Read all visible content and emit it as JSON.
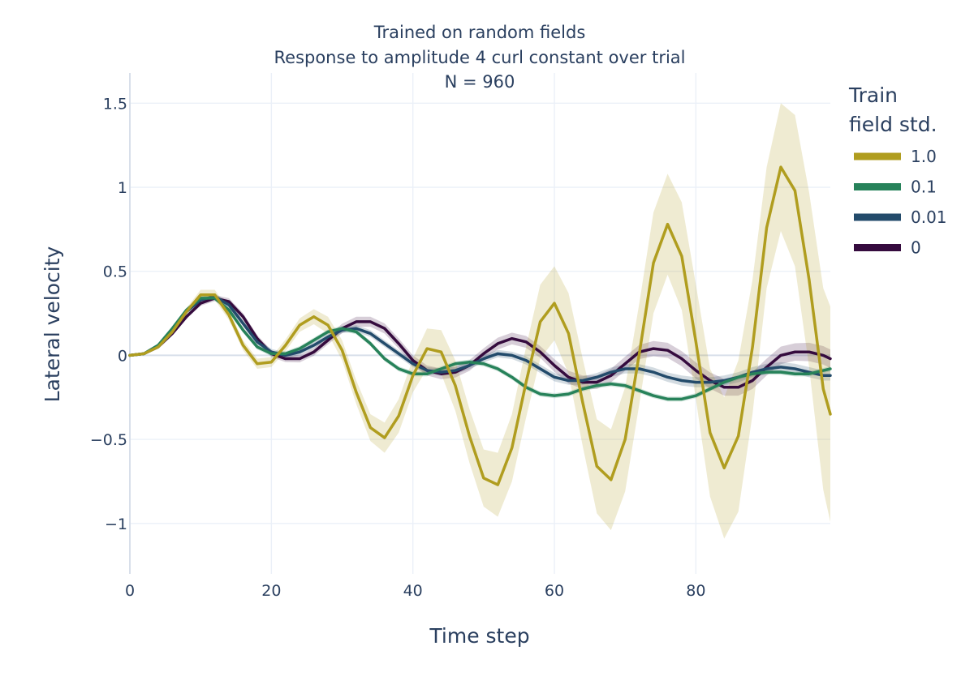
{
  "chart_data": {
    "type": "line",
    "title_lines": [
      "Trained on random fields",
      "Response to amplitude 4 curl constant over trial",
      "N = 960"
    ],
    "xlabel": "Time step",
    "ylabel": "Lateral velocity",
    "xlim": [
      0,
      99
    ],
    "ylim": [
      -1.3,
      1.68
    ],
    "xticks": [
      0,
      20,
      40,
      60,
      80
    ],
    "xtick_labels": [
      "0",
      "20",
      "40",
      "60",
      "80"
    ],
    "yticks": [
      -1,
      -0.5,
      0,
      0.5,
      1,
      1.5
    ],
    "ytick_labels": [
      "−1",
      "−0.5",
      "0",
      "0.5",
      "1",
      "1.5"
    ],
    "grid": true,
    "legend": {
      "title_lines": [
        "Train",
        "field std."
      ],
      "placement": "right"
    },
    "series": [
      {
        "name": "1.0",
        "color": "#b09d1f",
        "band": true,
        "x": [
          0,
          2,
          4,
          6,
          8,
          10,
          12,
          14,
          16,
          18,
          20,
          22,
          24,
          26,
          28,
          30,
          32,
          34,
          36,
          38,
          40,
          42,
          44,
          46,
          48,
          50,
          52,
          54,
          56,
          58,
          60,
          62,
          64,
          66,
          68,
          70,
          72,
          74,
          76,
          78,
          80,
          82,
          84,
          86,
          88,
          90,
          92,
          94,
          96,
          98,
          99
        ],
        "y": [
          0,
          0.01,
          0.05,
          0.14,
          0.26,
          0.36,
          0.36,
          0.24,
          0.06,
          -0.05,
          -0.04,
          0.06,
          0.18,
          0.23,
          0.18,
          0.03,
          -0.22,
          -0.43,
          -0.49,
          -0.36,
          -0.12,
          0.04,
          0.02,
          -0.18,
          -0.48,
          -0.73,
          -0.77,
          -0.55,
          -0.16,
          0.2,
          0.31,
          0.13,
          -0.28,
          -0.66,
          -0.74,
          -0.5,
          0.01,
          0.55,
          0.78,
          0.59,
          0.08,
          -0.46,
          -0.67,
          -0.48,
          0.05,
          0.76,
          1.12,
          0.98,
          0.45,
          -0.2,
          -0.35
        ],
        "band_halfwidth": [
          0,
          0.005,
          0.01,
          0.015,
          0.02,
          0.03,
          0.03,
          0.03,
          0.03,
          0.03,
          0.03,
          0.035,
          0.04,
          0.045,
          0.05,
          0.06,
          0.07,
          0.08,
          0.09,
          0.1,
          0.1,
          0.12,
          0.13,
          0.15,
          0.16,
          0.17,
          0.19,
          0.2,
          0.21,
          0.22,
          0.22,
          0.24,
          0.26,
          0.28,
          0.3,
          0.31,
          0.3,
          0.3,
          0.3,
          0.32,
          0.34,
          0.38,
          0.42,
          0.45,
          0.4,
          0.36,
          0.38,
          0.45,
          0.52,
          0.6,
          0.64
        ]
      },
      {
        "name": "0.1",
        "color": "#27825a",
        "band": true,
        "x": [
          0,
          2,
          4,
          6,
          8,
          10,
          12,
          14,
          16,
          18,
          20,
          22,
          24,
          26,
          28,
          30,
          32,
          34,
          36,
          38,
          40,
          42,
          44,
          46,
          48,
          50,
          52,
          54,
          56,
          58,
          60,
          62,
          64,
          66,
          68,
          70,
          72,
          74,
          76,
          78,
          80,
          82,
          84,
          86,
          88,
          90,
          92,
          94,
          96,
          98,
          99
        ],
        "y": [
          0,
          0.01,
          0.06,
          0.16,
          0.27,
          0.34,
          0.34,
          0.27,
          0.15,
          0.05,
          0.01,
          0.01,
          0.04,
          0.09,
          0.14,
          0.16,
          0.14,
          0.07,
          -0.02,
          -0.08,
          -0.11,
          -0.11,
          -0.08,
          -0.05,
          -0.04,
          -0.05,
          -0.08,
          -0.13,
          -0.19,
          -0.23,
          -0.24,
          -0.23,
          -0.2,
          -0.18,
          -0.17,
          -0.18,
          -0.21,
          -0.24,
          -0.26,
          -0.26,
          -0.24,
          -0.2,
          -0.16,
          -0.13,
          -0.11,
          -0.1,
          -0.1,
          -0.11,
          -0.11,
          -0.09,
          -0.08
        ],
        "band_halfwidth": [
          0,
          0.005,
          0.008,
          0.01,
          0.012,
          0.015,
          0.015,
          0.015,
          0.015,
          0.015,
          0.015,
          0.015,
          0.015,
          0.015,
          0.015,
          0.015,
          0.015,
          0.015,
          0.015,
          0.015,
          0.015,
          0.015,
          0.015,
          0.015,
          0.015,
          0.015,
          0.015,
          0.015,
          0.015,
          0.015,
          0.015,
          0.015,
          0.015,
          0.015,
          0.015,
          0.015,
          0.015,
          0.015,
          0.015,
          0.015,
          0.015,
          0.015,
          0.015,
          0.015,
          0.015,
          0.015,
          0.015,
          0.015,
          0.015,
          0.015,
          0.015
        ]
      },
      {
        "name": "0.01",
        "color": "#234b6b",
        "band": true,
        "x": [
          0,
          2,
          4,
          6,
          8,
          10,
          12,
          14,
          16,
          18,
          20,
          22,
          24,
          26,
          28,
          30,
          32,
          34,
          36,
          38,
          40,
          42,
          44,
          46,
          48,
          50,
          52,
          54,
          56,
          58,
          60,
          62,
          64,
          66,
          68,
          70,
          72,
          74,
          76,
          78,
          80,
          82,
          84,
          86,
          88,
          90,
          92,
          94,
          96,
          98,
          99
        ],
        "y": [
          0,
          0.01,
          0.06,
          0.15,
          0.26,
          0.33,
          0.35,
          0.3,
          0.19,
          0.08,
          0.02,
          0,
          0.02,
          0.06,
          0.11,
          0.15,
          0.16,
          0.13,
          0.07,
          0.01,
          -0.05,
          -0.09,
          -0.1,
          -0.09,
          -0.06,
          -0.02,
          0.01,
          0,
          -0.03,
          -0.08,
          -0.13,
          -0.15,
          -0.15,
          -0.13,
          -0.1,
          -0.08,
          -0.08,
          -0.1,
          -0.13,
          -0.15,
          -0.16,
          -0.16,
          -0.15,
          -0.13,
          -0.1,
          -0.08,
          -0.07,
          -0.08,
          -0.1,
          -0.12,
          -0.12
        ],
        "band_halfwidth": [
          0,
          0.005,
          0.008,
          0.01,
          0.012,
          0.015,
          0.018,
          0.018,
          0.018,
          0.018,
          0.018,
          0.018,
          0.018,
          0.018,
          0.018,
          0.018,
          0.02,
          0.02,
          0.02,
          0.02,
          0.02,
          0.02,
          0.022,
          0.022,
          0.022,
          0.022,
          0.022,
          0.022,
          0.025,
          0.025,
          0.025,
          0.025,
          0.025,
          0.025,
          0.028,
          0.028,
          0.028,
          0.028,
          0.028,
          0.03,
          0.03,
          0.03,
          0.03,
          0.03,
          0.03,
          0.03,
          0.03,
          0.03,
          0.03,
          0.03,
          0.03
        ]
      },
      {
        "name": "0",
        "color": "#350b3e",
        "band": true,
        "x": [
          0,
          2,
          4,
          6,
          8,
          10,
          12,
          14,
          16,
          18,
          20,
          22,
          24,
          26,
          28,
          30,
          32,
          34,
          36,
          38,
          40,
          42,
          44,
          46,
          48,
          50,
          52,
          54,
          56,
          58,
          60,
          62,
          64,
          66,
          68,
          70,
          72,
          74,
          76,
          78,
          80,
          82,
          84,
          86,
          88,
          90,
          92,
          94,
          96,
          98,
          99
        ],
        "y": [
          0,
          0.01,
          0.05,
          0.13,
          0.23,
          0.31,
          0.34,
          0.32,
          0.23,
          0.1,
          0.01,
          -0.02,
          -0.02,
          0.02,
          0.09,
          0.16,
          0.2,
          0.2,
          0.16,
          0.07,
          -0.03,
          -0.09,
          -0.11,
          -0.1,
          -0.06,
          0.01,
          0.07,
          0.1,
          0.08,
          0.02,
          -0.06,
          -0.13,
          -0.16,
          -0.16,
          -0.12,
          -0.05,
          0.02,
          0.04,
          0.03,
          -0.02,
          -0.09,
          -0.15,
          -0.19,
          -0.19,
          -0.15,
          -0.07,
          0,
          0.02,
          0.02,
          0,
          -0.02
        ],
        "band_halfwidth": [
          0,
          0.005,
          0.008,
          0.01,
          0.012,
          0.015,
          0.018,
          0.02,
          0.02,
          0.02,
          0.02,
          0.02,
          0.022,
          0.022,
          0.025,
          0.028,
          0.03,
          0.03,
          0.03,
          0.03,
          0.03,
          0.03,
          0.032,
          0.032,
          0.032,
          0.032,
          0.035,
          0.035,
          0.035,
          0.035,
          0.038,
          0.038,
          0.04,
          0.04,
          0.04,
          0.042,
          0.042,
          0.045,
          0.045,
          0.045,
          0.048,
          0.048,
          0.05,
          0.05,
          0.05,
          0.05,
          0.052,
          0.052,
          0.055,
          0.055,
          0.055
        ]
      }
    ]
  }
}
